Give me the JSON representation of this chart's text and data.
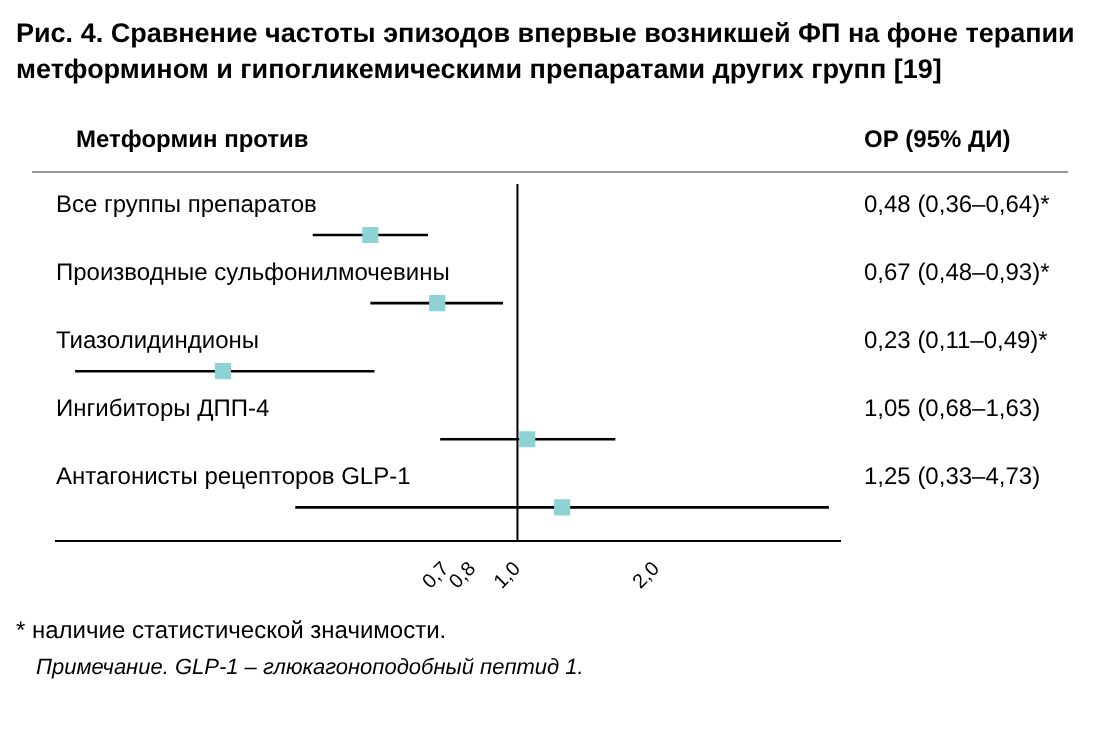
{
  "chart_data": {
    "type": "scatter",
    "title": "Рис. 4. Сравнение частоты эпизодов впервые возникшей ФП на фоне терапии метформином и гипогликемическими препаратами других групп [19]",
    "ylabel": "Метформин против",
    "y2label": "ОР (95% ДИ)",
    "categories": [
      "Все группы препаратов",
      "Производные сульфонилмочевины",
      "Тиазолидиндионы",
      "Ингибиторы ДПП-4",
      "Антагонисты рецепторов GLP-1"
    ],
    "orientation": "horizontal",
    "color": "#8ed3d3",
    "marker": "square",
    "values": [
      0.48,
      0.67,
      0.23,
      1.05,
      1.25
    ],
    "errors": [
      [
        0.36,
        0.64
      ],
      [
        0.48,
        0.93
      ],
      [
        0.11,
        0.49
      ],
      [
        0.68,
        1.63
      ],
      [
        0.33,
        4.73
      ]
    ],
    "value_labels": [
      "0,48 (0,36–0,64)*",
      "0,67 (0,48–0,93)*",
      "0,23 (0,11–0,49)*",
      "1,05 (0,68–1,63)",
      "1,25 (0,33–4,73)"
    ],
    "log": "x",
    "xlim": [
      0.1,
      5
    ],
    "xticks": [
      {
        "value": 0.7,
        "label": "0,7"
      },
      {
        "value": 0.8,
        "label": "0,8"
      },
      {
        "value": 1,
        "label": "1,0"
      },
      {
        "value": 2,
        "label": "2,0"
      }
    ],
    "ref_lines": [
      {
        "axis": "x",
        "value": 1
      }
    ],
    "grid": false,
    "legend": false,
    "annotations": [
      "* наличие статистической значимости.",
      "Примечание. GLP-1 – глюкагоноподобный пептид 1."
    ]
  }
}
